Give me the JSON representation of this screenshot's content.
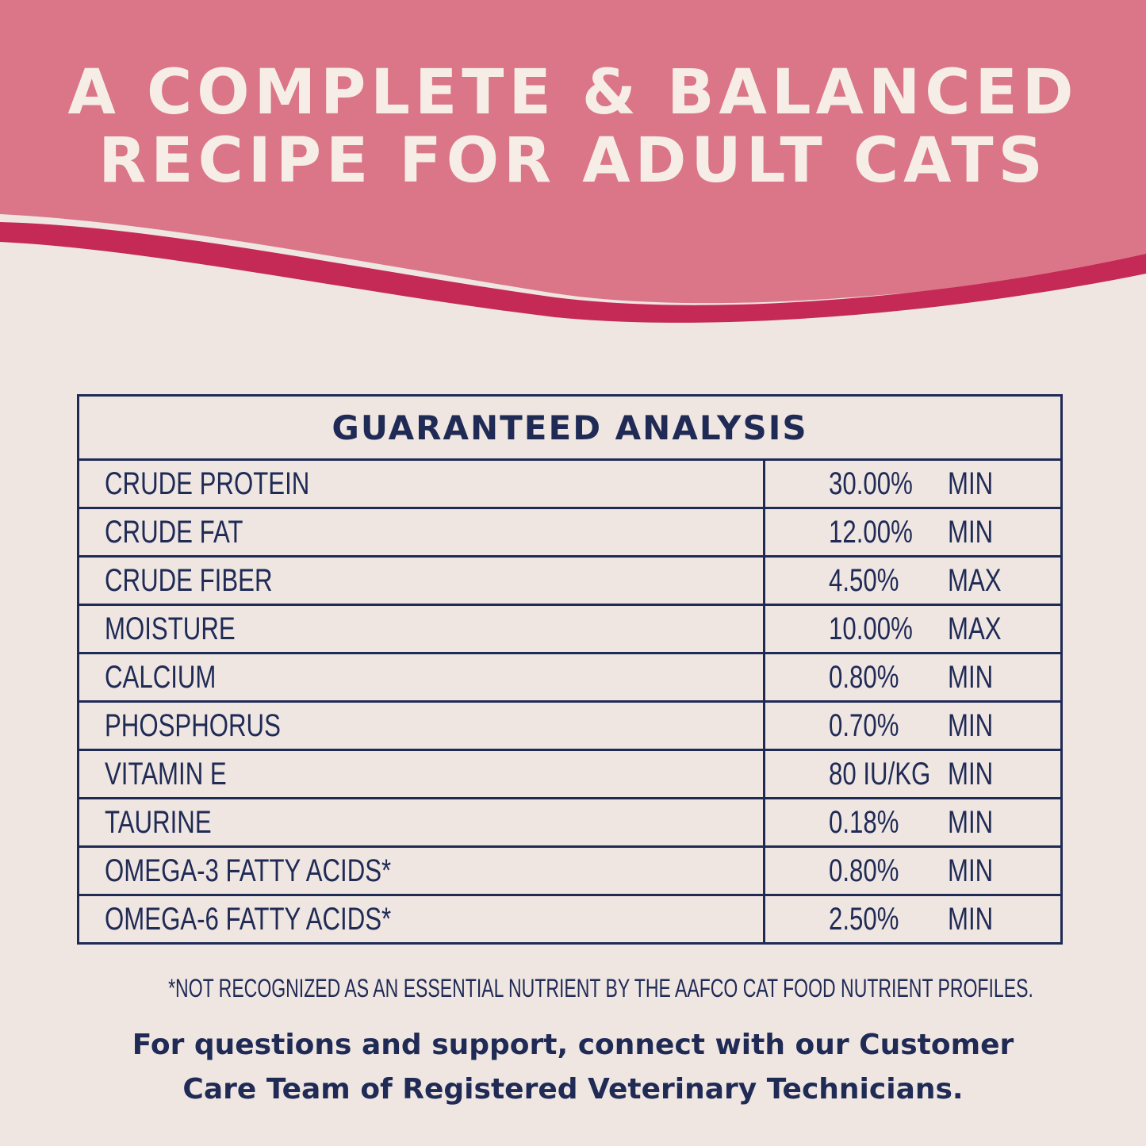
{
  "header": {
    "title_lines": [
      "A COMPLETE & BALANCED",
      "RECIPE FOR ADULT CATS"
    ]
  },
  "table": {
    "title": "GUARANTEED ANALYSIS",
    "rows": [
      [
        "CRUDE PROTEIN",
        "30.00%",
        "MIN"
      ],
      [
        "CRUDE FAT",
        "12.00%",
        "MIN"
      ],
      [
        "CRUDE FIBER",
        "4.50%",
        "MAX"
      ],
      [
        "MOISTURE",
        "10.00%",
        "MAX"
      ],
      [
        "CALCIUM",
        "0.80%",
        "MIN"
      ],
      [
        "PHOSPHORUS",
        "0.70%",
        "MIN"
      ],
      [
        "VITAMIN E",
        "80 IU/KG",
        "MIN"
      ],
      [
        "TAURINE",
        "0.18%",
        "MIN"
      ],
      [
        "OMEGA-3 FATTY ACIDS*",
        "0.80%",
        "MIN"
      ],
      [
        "OMEGA-6 FATTY ACIDS*",
        "2.50%",
        "MIN"
      ]
    ]
  },
  "footnote": "*NOT RECOGNIZED AS AN ESSENTIAL NUTRIENT BY THE AAFCO CAT FOOD NUTRIENT PROFILES.",
  "support_lines": [
    "For questions and support, connect with our Customer",
    "Care Team of Registered Veterinary Technicians."
  ]
}
